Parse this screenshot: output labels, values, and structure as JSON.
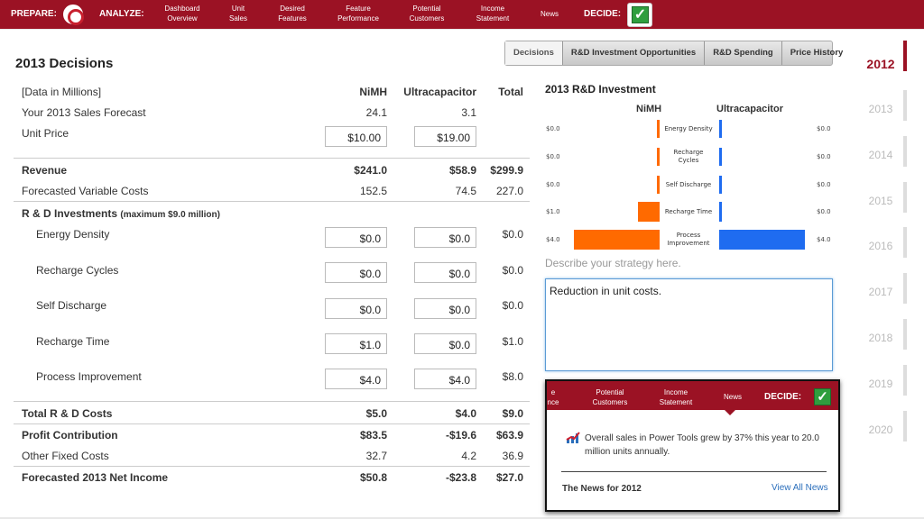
{
  "nav": {
    "prepare": "PREPARE:",
    "analyze": "ANALYZE:",
    "items": [
      {
        "l1": "Dashboard",
        "l2": "Overview"
      },
      {
        "l1": "Unit",
        "l2": "Sales"
      },
      {
        "l1": "Desired",
        "l2": "Features"
      },
      {
        "l1": "Feature",
        "l2": "Performance"
      },
      {
        "l1": "Potential",
        "l2": "Customers"
      },
      {
        "l1": "Income",
        "l2": "Statement"
      }
    ],
    "news": "News",
    "decide": "DECIDE:"
  },
  "title": "2013 Decisions",
  "tabs": [
    "Decisions",
    "R&D Investment Opportunities",
    "R&D Spending",
    "Price History"
  ],
  "table": {
    "header": {
      "label": "[Data in Millions]",
      "c1": "NiMH",
      "c2": "Ultracapacitor",
      "c3": "Total"
    },
    "forecast": {
      "label": "Your 2013 Sales Forecast",
      "c1": "24.1",
      "c2": "3.1"
    },
    "price": {
      "label": "Unit Price",
      "c1": "$10.00",
      "c2": "$19.00"
    },
    "revenue": {
      "label": "Revenue",
      "c1": "$241.0",
      "c2": "$58.9",
      "c3": "$299.9"
    },
    "varcost": {
      "label": "Forecasted Variable Costs",
      "c1": "152.5",
      "c2": "74.5",
      "c3": "227.0"
    },
    "rd_title": "R & D Investments",
    "rd_note": "(maximum $9.0 million)",
    "rd": [
      {
        "label": "Energy Density",
        "c1": "$0.0",
        "c2": "$0.0",
        "c3": "$0.0"
      },
      {
        "label": "Recharge Cycles",
        "c1": "$0.0",
        "c2": "$0.0",
        "c3": "$0.0"
      },
      {
        "label": "Self Discharge",
        "c1": "$0.0",
        "c2": "$0.0",
        "c3": "$0.0"
      },
      {
        "label": "Recharge Time",
        "c1": "$1.0",
        "c2": "$0.0",
        "c3": "$1.0"
      },
      {
        "label": "Process Improvement",
        "c1": "$4.0",
        "c2": "$4.0",
        "c3": "$8.0"
      }
    ],
    "total_rd": {
      "label": "Total R & D Costs",
      "c1": "$5.0",
      "c2": "$4.0",
      "c3": "$9.0"
    },
    "profit": {
      "label": "Profit Contribution",
      "c1": "$83.5",
      "c2": "-$19.6",
      "c3": "$63.9"
    },
    "fixed": {
      "label": "Other Fixed Costs",
      "c1": "32.7",
      "c2": "4.2",
      "c3": "36.9"
    },
    "net": {
      "label": "Forecasted 2013 Net Income",
      "c1": "$50.8",
      "c2": "-$23.8",
      "c3": "$27.0"
    }
  },
  "rd_chart": {
    "title": "2013 R&D Investment",
    "left_header": "NiMH",
    "right_header": "Ultracapacitor",
    "rows": [
      {
        "l1": "Energy Density",
        "l2": "",
        "left_label": "$0.0",
        "right_label": "$0.0"
      },
      {
        "l1": "Recharge",
        "l2": "Cycles",
        "left_label": "$0.0",
        "right_label": "$0.0"
      },
      {
        "l1": "Self Discharge",
        "l2": "",
        "left_label": "$0.0",
        "right_label": "$0.0"
      },
      {
        "l1": "Recharge Time",
        "l2": "",
        "left_label": "$1.0",
        "right_label": "$0.0"
      },
      {
        "l1": "Process",
        "l2": "Improvement",
        "left_label": "$4.0",
        "right_label": "$4.0"
      }
    ],
    "colors": {
      "left": "#ff6a00",
      "right": "#1f6cf0"
    }
  },
  "chart_data": {
    "type": "bar",
    "categories": [
      "Energy Density",
      "Recharge Cycles",
      "Self Discharge",
      "Recharge Time",
      "Process Improvement"
    ],
    "series": [
      {
        "name": "NiMH",
        "values": [
          0.0,
          0.0,
          0.0,
          1.0,
          4.0
        ]
      },
      {
        "name": "Ultracapacitor",
        "values": [
          0.0,
          0.0,
          0.0,
          0.0,
          4.0
        ]
      }
    ],
    "title": "2013 R&D Investment"
  },
  "strategy": {
    "placeholder": "Describe your strategy here.",
    "value": "Reduction in unit costs."
  },
  "popup": {
    "nav_items": [
      {
        "l1": "e",
        "l2": "nce"
      },
      {
        "l1": "Potential",
        "l2": "Customers"
      },
      {
        "l1": "Income",
        "l2": "Statement"
      }
    ],
    "news": "News",
    "decide": "DECIDE:",
    "news_text": "Overall sales in Power Tools grew by 37% this year to 20.0 million units annually.",
    "footer": "The News for 2012",
    "view_all": "View All News"
  },
  "years": {
    "active": "2012",
    "list": [
      "2013",
      "2014",
      "2015",
      "2016",
      "2017",
      "2018",
      "2019",
      "2020"
    ]
  }
}
